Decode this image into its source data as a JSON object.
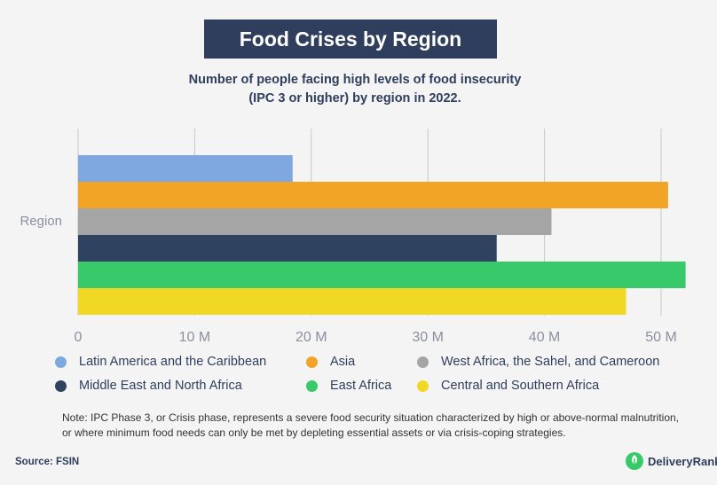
{
  "header": {
    "title": "Food Crises by Region"
  },
  "chart_data": {
    "type": "bar",
    "orientation": "horizontal",
    "title": "Food Crises by Region",
    "subtitle": "Number of people facing high levels of food insecurity (IPC 3 or higher) by region in 2022.",
    "subtitle_lines": [
      "Number of people facing high levels of food insecurity",
      "(IPC 3 or higher) by region in 2022."
    ],
    "category_label": "Region",
    "xlim": [
      0,
      50
    ],
    "ticks": [
      0,
      10,
      20,
      30,
      40,
      50
    ],
    "tick_labels": [
      "0",
      "10 M",
      "20 M",
      "30 M",
      "40 M",
      "50 M"
    ],
    "grid": true,
    "legend_placement": "bottom",
    "series": [
      {
        "name": "Latin America and the Caribbean",
        "value": 18.4,
        "color": "#7fa7e0"
      },
      {
        "name": "Asia",
        "value": 50.6,
        "color": "#f2a427"
      },
      {
        "name": "West Africa, the Sahel, and Cameroon",
        "value": 40.6,
        "color": "#a5a5a5"
      },
      {
        "name": "Middle East and North Africa",
        "value": 35.9,
        "color": "#2f4260"
      },
      {
        "name": "East Africa",
        "value": 52.1,
        "color": "#37c96a"
      },
      {
        "name": "Central and Southern Africa",
        "value": 47.0,
        "color": "#f0d825"
      }
    ]
  },
  "footer": {
    "note": "Note: IPC Phase 3, or Crisis phase, represents a severe food security situation characterized by high or above-normal malnutrition, or where minimum food needs can only be met by depleting essential assets or via crisis-coping strategies.",
    "source": "Source: FSIN",
    "brand": "DeliveryRank",
    "brand_color": "#37c96a"
  }
}
